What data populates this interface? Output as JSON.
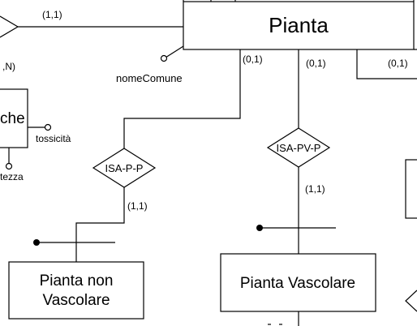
{
  "entities": {
    "pianta": "Pianta",
    "pianta_non_vascolare_line1": "Pianta non",
    "pianta_non_vascolare_line2": "Vascolare",
    "pianta_vascolare": "Pianta Vascolare",
    "left_partial": "che"
  },
  "relationships": {
    "isa_p_p": "ISA-P-P",
    "isa_pv_p": "ISA-PV-P"
  },
  "attributes": {
    "nome_comune": "nomeComune",
    "tossicita": "tossicità",
    "tezza": "tezza"
  },
  "cardinalities": {
    "top_left": "(1,1)",
    "left_partial": ",N)",
    "pianta_to_isa_p_p": "(0,1)",
    "pianta_to_isa_pv_p": "(0,1)",
    "pianta_right": "(0,1)",
    "isa_p_p_to_child": "(1,1)",
    "isa_pv_p_to_child": "(1,1)"
  },
  "icons": [
    "diamond-shape",
    "attribute-circle",
    "identifier-dot"
  ]
}
